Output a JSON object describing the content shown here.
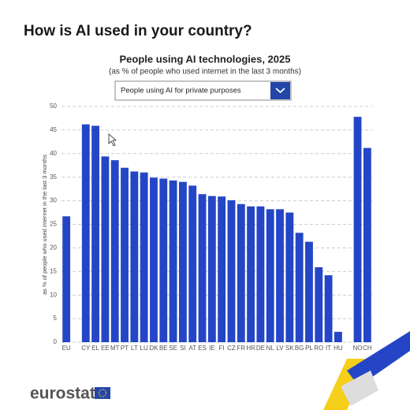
{
  "page": {
    "heading": "How is AI used in your country?",
    "dropdown": "People using AI for private purposes",
    "logo": "eurostat"
  },
  "chart_data": {
    "type": "bar",
    "title": "People using AI technologies, 2025",
    "subtitle": "(as % of people who used internet in the last 3 months)",
    "y_label": "as % of people who used internet in the last 3 months",
    "categories": [
      "EU",
      null,
      "CY",
      "EL",
      "EE",
      "MT",
      "PT",
      "LT",
      "LU",
      "DK",
      "BE",
      "SE",
      "SI",
      "AT",
      "ES",
      "IE",
      "FI",
      "CZ",
      "FR",
      "HR",
      "DE",
      "NL",
      "LV",
      "SK",
      "BG",
      "PL",
      "RO",
      "IT",
      "HU",
      null,
      "NO",
      "CH"
    ],
    "values": [
      26.7,
      null,
      46.2,
      45.9,
      39.4,
      38.6,
      37.0,
      36.2,
      36.0,
      34.9,
      34.7,
      34.3,
      34.0,
      33.2,
      31.4,
      31.0,
      30.9,
      30.1,
      29.3,
      28.8,
      28.8,
      28.2,
      28.2,
      27.5,
      23.2,
      21.3,
      15.9,
      14.2,
      2.2,
      null,
      47.8,
      41.2
    ],
    "color": "#2446c6",
    "ylim": [
      0,
      50
    ],
    "yticks": [
      0,
      5,
      10,
      15,
      20,
      25,
      30,
      35,
      40,
      45,
      50
    ],
    "grid": true
  }
}
